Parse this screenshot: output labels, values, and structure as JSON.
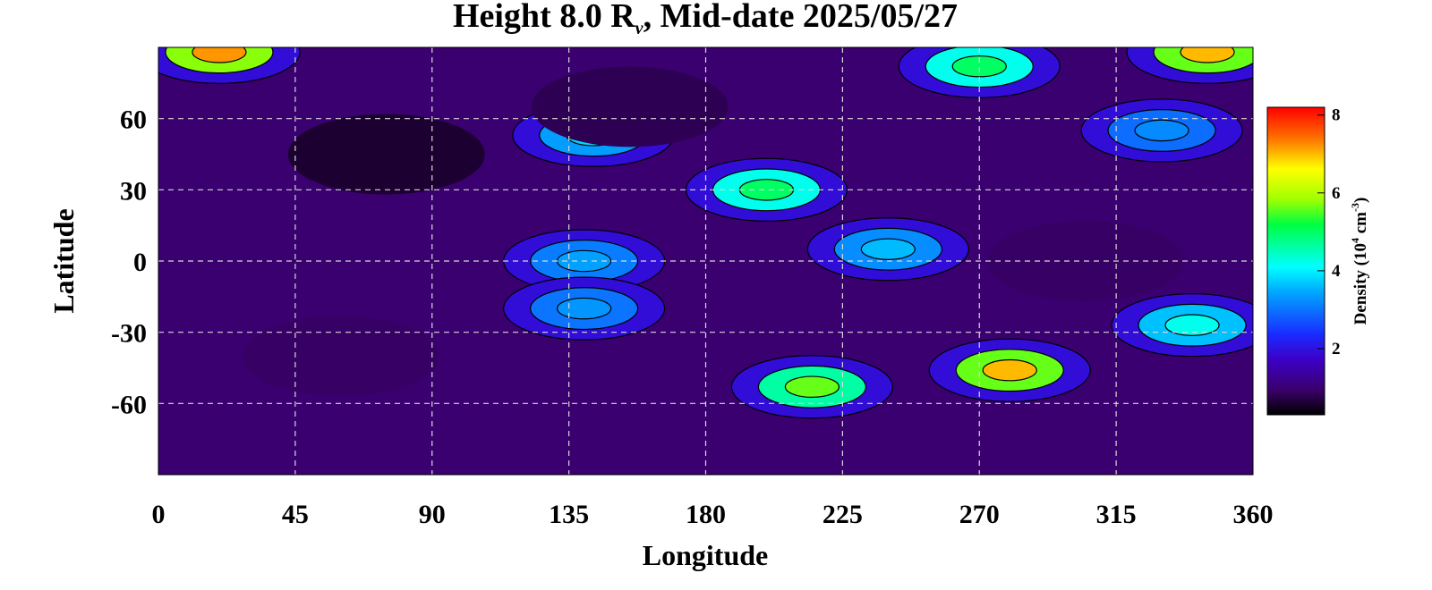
{
  "chart_data": {
    "type": "heatmap",
    "title_main": "Height 8.0 R",
    "title_sub": "ν",
    "title_rest": ", Mid-date 2025/05/27",
    "xlabel": "Longitude",
    "ylabel": "Latitude",
    "xlim": [
      0,
      360
    ],
    "ylim": [
      -90,
      90
    ],
    "x_ticks": [
      "0",
      "45",
      "90",
      "135",
      "180",
      "225",
      "270",
      "315",
      "360"
    ],
    "y_ticks": [
      "60",
      "30",
      "0",
      "-30",
      "-60"
    ],
    "grid": true,
    "colorbar": {
      "label_prefix": "Density (10",
      "label_exp1": "4",
      "label_mid": " cm",
      "label_exp2": "-3",
      "label_suffix": ")",
      "ticks": [
        "2",
        "4",
        "6",
        "8"
      ],
      "range": [
        0.3,
        8.2
      ],
      "colors": [
        "#000000",
        "#3a006a",
        "#3c00c8",
        "#1a2aff",
        "#00a8ff",
        "#00ffff",
        "#00ff40",
        "#a0ff00",
        "#ffff00",
        "#ff7000",
        "#ff0000"
      ]
    },
    "features": [
      {
        "lon": 20,
        "lat": 88,
        "value": 7.2
      },
      {
        "lon": 345,
        "lat": 88,
        "value": 7.0
      },
      {
        "lon": 270,
        "lat": 82,
        "value": 5.0
      },
      {
        "lon": 200,
        "lat": 30,
        "value": 5.0
      },
      {
        "lon": 143,
        "lat": 53,
        "value": 3.8
      },
      {
        "lon": 240,
        "lat": 5,
        "value": 3.6
      },
      {
        "lon": 140,
        "lat": 0,
        "value": 3.4
      },
      {
        "lon": 140,
        "lat": -20,
        "value": 3.3
      },
      {
        "lon": 340,
        "lat": -27,
        "value": 4.2
      },
      {
        "lon": 280,
        "lat": -46,
        "value": 7.0
      },
      {
        "lon": 215,
        "lat": -53,
        "value": 5.6
      },
      {
        "lon": 330,
        "lat": 55,
        "value": 3.2
      },
      {
        "lon": 75,
        "lat": 45,
        "value": 0.6
      },
      {
        "lon": 155,
        "lat": 65,
        "value": 0.8
      },
      {
        "lon": 60,
        "lat": -40,
        "value": 0.9
      },
      {
        "lon": 305,
        "lat": 0,
        "value": 0.9
      }
    ]
  }
}
